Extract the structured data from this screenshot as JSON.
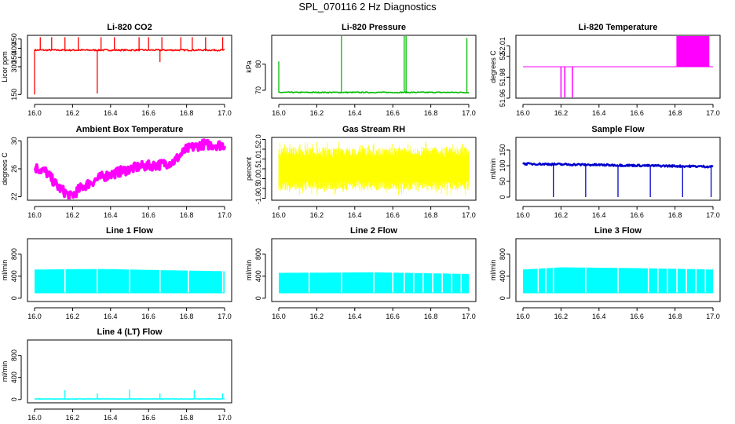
{
  "page_title": "SPL_070116  2 Hz Diagnostics",
  "chart_data": [
    {
      "id": "co2",
      "type": "line",
      "title": "Li-820 CO2",
      "ylabel": "Licor ppm",
      "color": "#ff0000",
      "xlim": [
        16.0,
        17.0
      ],
      "ylim": [
        130,
        470
      ],
      "yticks": [
        150,
        300,
        350,
        400,
        450
      ],
      "xticks": [
        "16.0",
        "16.2",
        "16.4",
        "16.6",
        "16.8",
        "17.0"
      ],
      "baseline": 390,
      "noise": 4,
      "spikes": [
        {
          "x": 16.0,
          "y": 150
        },
        {
          "x": 16.03,
          "y": 460
        },
        {
          "x": 16.09,
          "y": 460
        },
        {
          "x": 16.16,
          "y": 460
        },
        {
          "x": 16.23,
          "y": 460
        },
        {
          "x": 16.33,
          "y": 155
        },
        {
          "x": 16.35,
          "y": 460
        },
        {
          "x": 16.42,
          "y": 460
        },
        {
          "x": 16.55,
          "y": 460
        },
        {
          "x": 16.6,
          "y": 460
        },
        {
          "x": 16.66,
          "y": 325
        },
        {
          "x": 16.67,
          "y": 460
        },
        {
          "x": 16.77,
          "y": 460
        },
        {
          "x": 16.83,
          "y": 460
        },
        {
          "x": 16.9,
          "y": 460
        },
        {
          "x": 16.99,
          "y": 460
        }
      ]
    },
    {
      "id": "pressure",
      "type": "line",
      "title": "Li-820 Pressure",
      "ylabel": "kPa",
      "color": "#00bb00",
      "xlim": [
        16.0,
        17.0
      ],
      "ylim": [
        67,
        91
      ],
      "yticks": [
        70,
        80
      ],
      "xticks": [
        "16.0",
        "16.2",
        "16.4",
        "16.6",
        "16.8",
        "17.0"
      ],
      "baseline": 69.2,
      "noise": 0.2,
      "spikes": [
        {
          "x": 16.0,
          "y": 81
        },
        {
          "x": 16.33,
          "y": 91
        },
        {
          "x": 16.66,
          "y": 91
        },
        {
          "x": 16.67,
          "y": 91
        },
        {
          "x": 16.99,
          "y": 90
        }
      ]
    },
    {
      "id": "temperature",
      "type": "step",
      "title": "Li-820 Temperature",
      "ylabel": "degrees C",
      "color": "#ff00ff",
      "xlim": [
        16.0,
        17.0
      ],
      "ylim": [
        51.96,
        52.02
      ],
      "yticks": [
        51.96,
        51.98,
        52.0,
        52.01
      ],
      "xticks": [
        "16.0",
        "16.2",
        "16.4",
        "16.6",
        "16.8",
        "17.0"
      ],
      "baseline": 51.99,
      "low": 51.96,
      "high": 52.02,
      "dips": [
        16.2,
        16.22,
        16.26
      ],
      "high_band": [
        16.81,
        16.98
      ]
    },
    {
      "id": "ambient",
      "type": "line",
      "title": "Ambient Box Temperature",
      "ylabel": "degrees C",
      "color": "#ff00ff",
      "xlim": [
        16.0,
        17.0
      ],
      "ylim": [
        21.5,
        30.5
      ],
      "yticks": [
        22,
        26,
        30
      ],
      "xticks": [
        "16.0",
        "16.2",
        "16.4",
        "16.6",
        "16.8",
        "17.0"
      ],
      "trend": [
        [
          16.0,
          26.2
        ],
        [
          16.06,
          25.6
        ],
        [
          16.12,
          23.5
        ],
        [
          16.19,
          22.0
        ],
        [
          16.25,
          23.4
        ],
        [
          16.35,
          24.8
        ],
        [
          16.45,
          25.6
        ],
        [
          16.55,
          26.3
        ],
        [
          16.66,
          26.6
        ],
        [
          16.73,
          27.0
        ],
        [
          16.8,
          28.8
        ],
        [
          16.88,
          29.5
        ],
        [
          17.0,
          29.4
        ]
      ],
      "noise": 0.7
    },
    {
      "id": "rh",
      "type": "line",
      "title": "Gas Stream RH",
      "ylabel": "percent",
      "color": "#ffff00",
      "xlim": [
        16.0,
        17.0
      ],
      "ylim": [
        -1.1,
        2.1
      ],
      "yticks": [
        -1.0,
        -0.5,
        0.0,
        0.5,
        1.0,
        1.5,
        2.0
      ],
      "xticks": [
        "16.0",
        "16.2",
        "16.4",
        "16.6",
        "16.8",
        "17.0"
      ],
      "band": [
        -0.6,
        1.6
      ],
      "extremes": [
        -0.9,
        1.9
      ]
    },
    {
      "id": "sample_flow",
      "type": "line",
      "title": "Sample Flow",
      "ylabel": "ml/min",
      "color": "#0000cc",
      "xlim": [
        16.0,
        17.0
      ],
      "ylim": [
        -10,
        190
      ],
      "yticks": [
        0,
        50,
        100,
        150
      ],
      "xticks": [
        "16.0",
        "16.2",
        "16.4",
        "16.6",
        "16.8",
        "17.0"
      ],
      "trend": [
        [
          16.0,
          106
        ],
        [
          17.0,
          97
        ]
      ],
      "noise": 3,
      "spikes": [
        {
          "x": 16.16,
          "y": 0
        },
        {
          "x": 16.33,
          "y": 0
        },
        {
          "x": 16.5,
          "y": 0
        },
        {
          "x": 16.67,
          "y": 0
        },
        {
          "x": 16.84,
          "y": 0
        },
        {
          "x": 16.99,
          "y": 0
        }
      ]
    },
    {
      "id": "line1",
      "type": "band",
      "title": "Line 1 Flow",
      "ylabel": "ml/min",
      "color": "#00ffff",
      "xlim": [
        16.0,
        17.0
      ],
      "ylim": [
        -60,
        1080
      ],
      "yticks": [
        0,
        400,
        800
      ],
      "xticks": [
        "16.0",
        "16.2",
        "16.4",
        "16.6",
        "16.8",
        "17.0"
      ],
      "low": 90,
      "high": [
        [
          16.0,
          520
        ],
        [
          16.35,
          530
        ],
        [
          16.66,
          510
        ],
        [
          17.0,
          490
        ]
      ],
      "gaps": [
        16.16,
        16.33,
        16.5,
        16.66,
        16.81,
        16.99
      ]
    },
    {
      "id": "line2",
      "type": "band",
      "title": "Line 2 Flow",
      "ylabel": "ml/min",
      "color": "#00ffff",
      "xlim": [
        16.0,
        17.0
      ],
      "ylim": [
        -60,
        1080
      ],
      "yticks": [
        0,
        400,
        800
      ],
      "xticks": [
        "16.0",
        "16.2",
        "16.4",
        "16.6",
        "16.8",
        "17.0"
      ],
      "low": 90,
      "high": [
        [
          16.0,
          460
        ],
        [
          16.5,
          470
        ],
        [
          17.0,
          440
        ]
      ],
      "gaps": [
        16.16,
        16.33,
        16.5,
        16.6,
        16.66,
        16.71,
        16.76,
        16.81,
        16.86,
        16.91,
        16.96
      ]
    },
    {
      "id": "line3",
      "type": "band",
      "title": "Line 3 Flow",
      "ylabel": "ml/min",
      "color": "#00ffff",
      "xlim": [
        16.0,
        17.0
      ],
      "ylim": [
        -60,
        1080
      ],
      "yticks": [
        0,
        400,
        800
      ],
      "xticks": [
        "16.0",
        "16.2",
        "16.4",
        "16.6",
        "16.8",
        "17.0"
      ],
      "low": 90,
      "high": [
        [
          16.0,
          520
        ],
        [
          16.2,
          560
        ],
        [
          16.5,
          550
        ],
        [
          16.8,
          535
        ],
        [
          17.0,
          520
        ]
      ],
      "gaps": [
        16.08,
        16.12,
        16.16,
        16.33,
        16.5,
        16.66,
        16.71,
        16.76,
        16.81,
        16.86,
        16.91,
        16.96
      ]
    },
    {
      "id": "line4",
      "type": "line",
      "title": "Line 4 (LT) Flow",
      "ylabel": "ml/min",
      "color": "#00ffff",
      "xlim": [
        16.0,
        17.0
      ],
      "ylim": [
        -60,
        1080
      ],
      "yticks": [
        0,
        400,
        800
      ],
      "xticks": [
        "16.0",
        "16.2",
        "16.4",
        "16.6",
        "16.8",
        "17.0"
      ],
      "baseline": 10,
      "noise": 3,
      "spikes": [
        {
          "x": 16.16,
          "y": 170
        },
        {
          "x": 16.33,
          "y": 110
        },
        {
          "x": 16.5,
          "y": 180
        },
        {
          "x": 16.66,
          "y": 110
        },
        {
          "x": 16.84,
          "y": 170
        },
        {
          "x": 16.99,
          "y": 110
        }
      ]
    }
  ]
}
